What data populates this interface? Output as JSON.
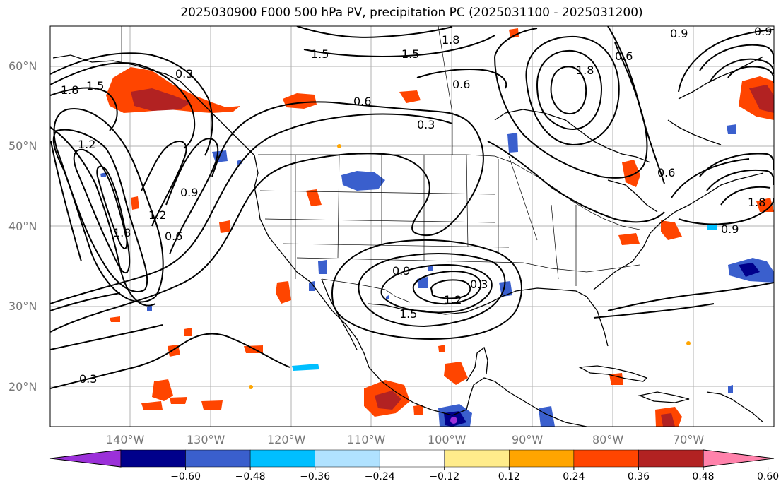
{
  "title": "2025030900 F000 500 hPa PV, precipitation PC (2025031100 - 2025031200)",
  "axes": {
    "lat_labels": [
      "60°N",
      "50°N",
      "40°N",
      "30°N",
      "20°N"
    ],
    "lon_labels": [
      "140°W",
      "130°W",
      "120°W",
      "110°W",
      "100°W",
      "90°W",
      "80°W",
      "70°W"
    ],
    "lon_range": [
      -150,
      -60
    ],
    "lat_range": [
      15,
      65
    ]
  },
  "pv_contour_labels": [
    "1.8",
    "1.5",
    "1.2",
    "0.9",
    "0.6",
    "0.3",
    "1.2",
    "1.8",
    "1.5",
    "1.5",
    "0.6",
    "1.8",
    "0.9",
    "0.6",
    "0.3",
    "0.6",
    "0.9",
    "1.5",
    "1.2",
    "0.3",
    "0.6",
    "0.9",
    "1.8",
    "0.9"
  ],
  "colorbar": {
    "ticks": [
      "−0.60",
      "−0.48",
      "−0.36",
      "−0.24",
      "−0.12",
      "0.12",
      "0.24",
      "0.36",
      "0.48",
      "0.60"
    ],
    "colors": [
      "#9b30d9",
      "#00008b",
      "#3a5fcd",
      "#00bfff",
      "#b0e2ff",
      "#ffffff",
      "#ffec8b",
      "#ffa500",
      "#ff4500",
      "#b22222",
      "#ff82ab"
    ]
  }
}
